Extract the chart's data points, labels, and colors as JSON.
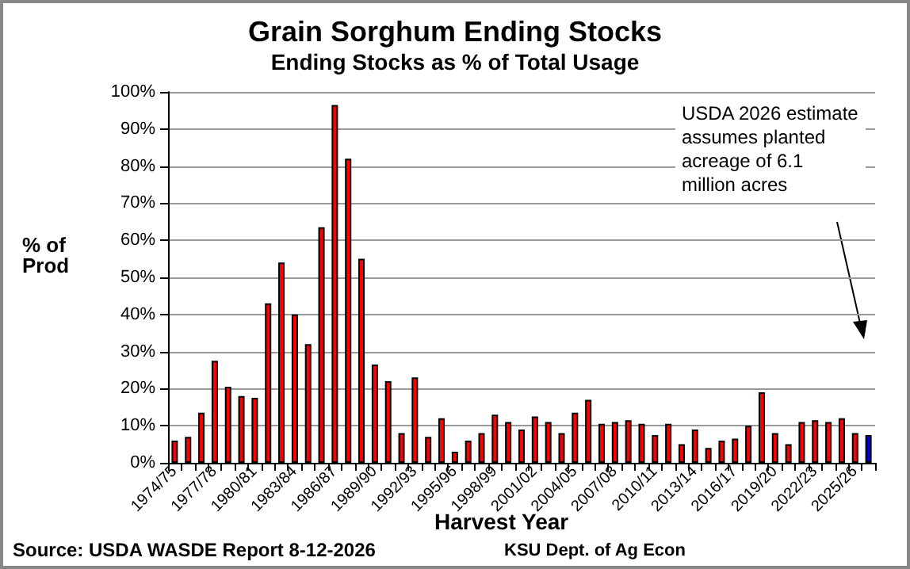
{
  "chart_data": {
    "type": "bar",
    "title": "Grain Sorghum Ending Stocks",
    "subtitle": "Ending Stocks as % of Total Usage",
    "xlabel": "Harvest Year",
    "ylabel": "% of\nProd",
    "categories": [
      "1974/75",
      null,
      null,
      "1977/78",
      null,
      null,
      "1980/81",
      null,
      null,
      "1983/84",
      null,
      null,
      "1986/87",
      null,
      null,
      "1989/90",
      null,
      null,
      "1992/93",
      null,
      null,
      "1995/96",
      null,
      null,
      "1998/99",
      null,
      null,
      "2001/02",
      null,
      null,
      "2004/05",
      null,
      null,
      "2007/08",
      null,
      null,
      "2010/11",
      null,
      null,
      "2013/14",
      null,
      null,
      "2016/17",
      null,
      null,
      "2019/20",
      null,
      null,
      "2022/23",
      null,
      null,
      "2025/26",
      null
    ],
    "values": [
      6,
      7,
      13.5,
      27.5,
      20.5,
      18,
      17.5,
      43,
      54,
      40,
      32,
      63.5,
      96.5,
      82,
      55,
      26.5,
      22,
      8,
      23,
      7,
      12,
      3,
      6,
      8,
      13,
      11,
      9,
      12.5,
      11,
      8,
      13.5,
      17,
      10.5,
      11,
      11.5,
      10.5,
      7.5,
      10.5,
      5,
      9,
      4,
      6,
      6.5,
      10,
      19,
      8,
      5,
      11,
      11.5,
      11,
      12,
      8,
      7.5
    ],
    "colors": [
      "#ff0000",
      "#ff0000",
      "#ff0000",
      "#ff0000",
      "#ff0000",
      "#ff0000",
      "#ff0000",
      "#ff0000",
      "#ff0000",
      "#ff0000",
      "#ff0000",
      "#ff0000",
      "#ff0000",
      "#ff0000",
      "#ff0000",
      "#ff0000",
      "#ff0000",
      "#ff0000",
      "#ff0000",
      "#ff0000",
      "#ff0000",
      "#ff0000",
      "#ff0000",
      "#ff0000",
      "#ff0000",
      "#ff0000",
      "#ff0000",
      "#ff0000",
      "#ff0000",
      "#ff0000",
      "#ff0000",
      "#ff0000",
      "#ff0000",
      "#ff0000",
      "#ff0000",
      "#ff0000",
      "#ff0000",
      "#ff0000",
      "#ff0000",
      "#ff0000",
      "#ff0000",
      "#ff0000",
      "#ff0000",
      "#ff0000",
      "#ff0000",
      "#ff0000",
      "#ff0000",
      "#ff0000",
      "#ff0000",
      "#ff0000",
      "#ff0000",
      "#ff0000",
      "#0000cc"
    ],
    "ylim": [
      0,
      100
    ],
    "yticks": [
      {
        "value": 0,
        "label": "0%"
      },
      {
        "value": 10,
        "label": "10%"
      },
      {
        "value": 20,
        "label": "20%"
      },
      {
        "value": 30,
        "label": "30%"
      },
      {
        "value": 40,
        "label": "40%"
      },
      {
        "value": 50,
        "label": "50%"
      },
      {
        "value": 60,
        "label": "60%"
      },
      {
        "value": 70,
        "label": "70%"
      },
      {
        "value": 80,
        "label": "80%"
      },
      {
        "value": 90,
        "label": "90%"
      },
      {
        "value": 100,
        "label": "100%"
      }
    ],
    "grid": "y",
    "annotations": [
      "USDA 2026 estimate\nassumes planted\nacreage of 6.1\nmillion acres",
      "Source: USDA WASDE Report 8-12-2026",
      "KSU Dept. of Ag Econ"
    ]
  }
}
